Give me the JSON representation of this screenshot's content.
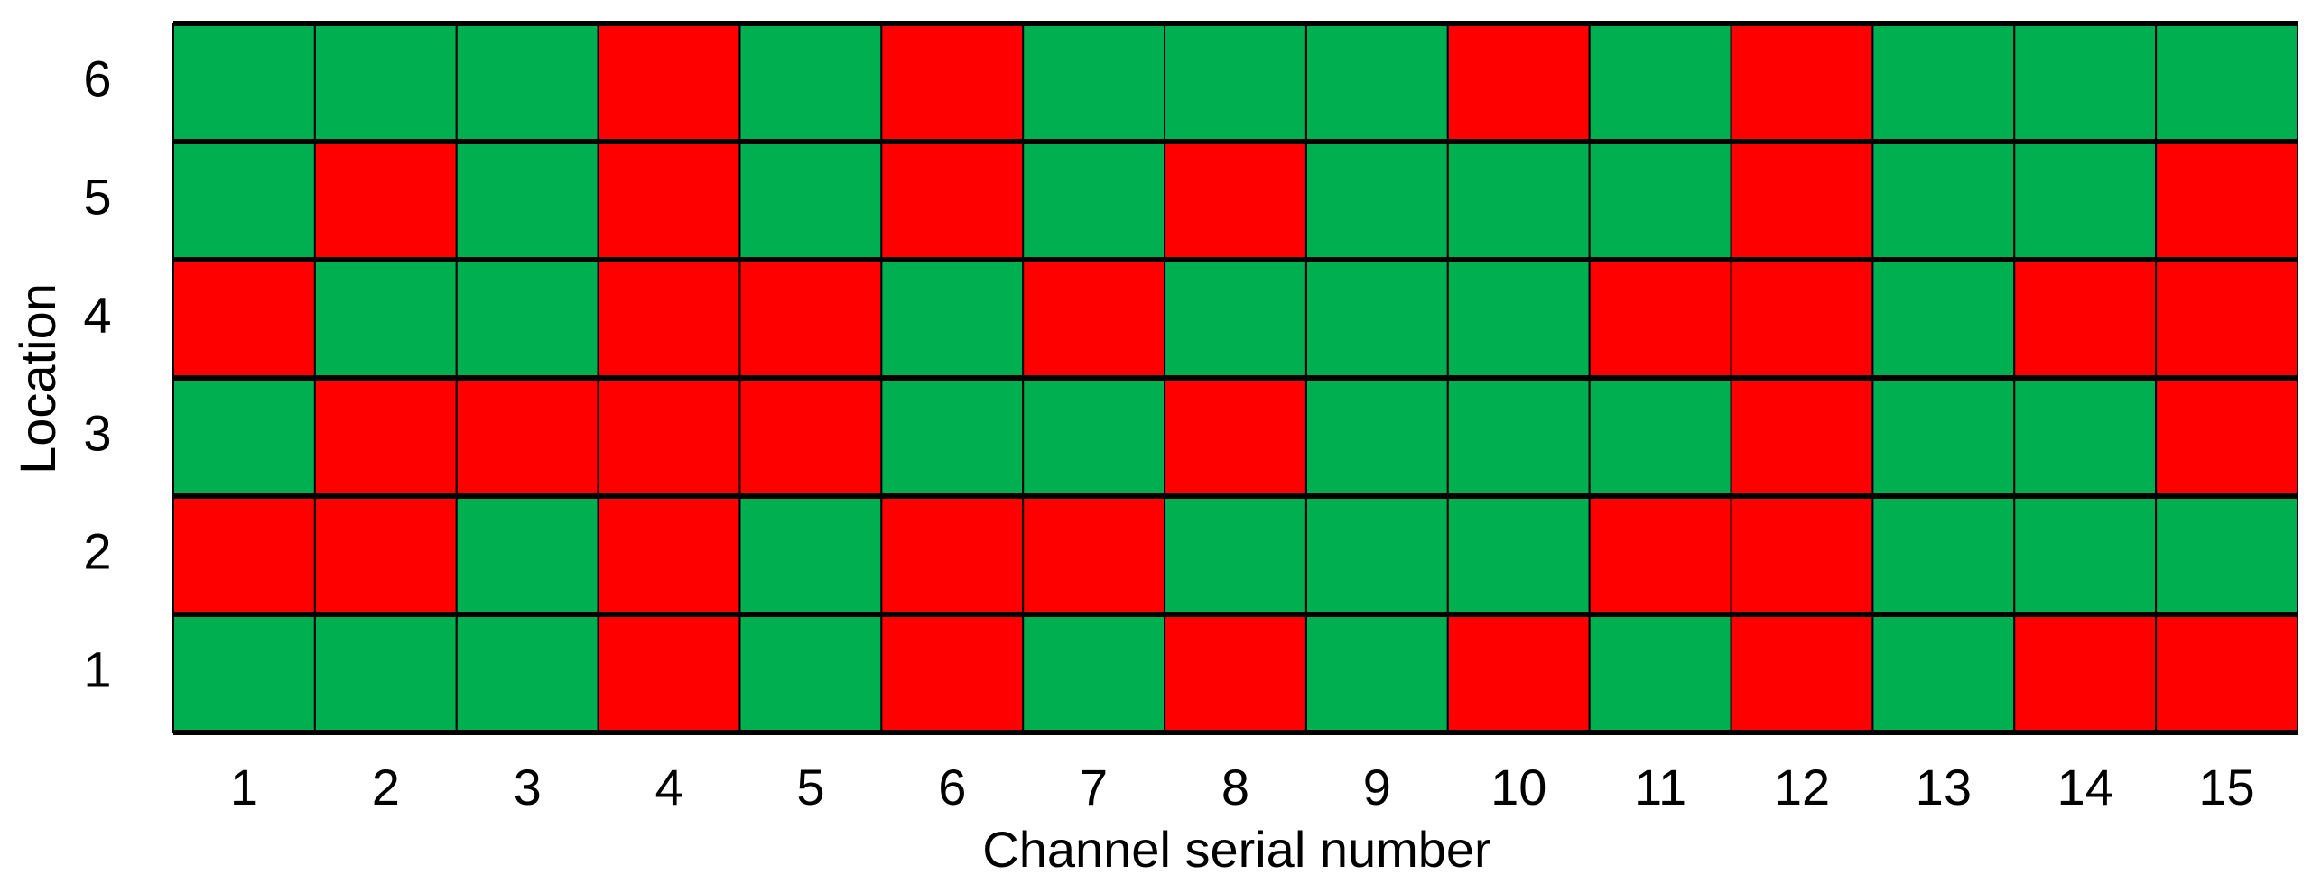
{
  "chart_data": {
    "type": "heatmap",
    "xlabel": "Channel serial number",
    "ylabel": "Location",
    "xticks": [
      1,
      2,
      3,
      4,
      5,
      6,
      7,
      8,
      9,
      10,
      11,
      12,
      13,
      14,
      15
    ],
    "yticks": [
      1,
      2,
      3,
      4,
      5,
      6
    ],
    "cells": [
      [
        "#00b050",
        "#00b050",
        "#00b050",
        "#ff0000",
        "#00b050",
        "#ff0000",
        "#00b050",
        "#ff0000",
        "#00b050",
        "#ff0000",
        "#00b050",
        "#ff0000",
        "#00b050",
        "#ff0000",
        "#ff0000"
      ],
      [
        "#ff0000",
        "#ff0000",
        "#00b050",
        "#ff0000",
        "#00b050",
        "#ff0000",
        "#ff0000",
        "#00b050",
        "#00b050",
        "#00b050",
        "#ff0000",
        "#ff0000",
        "#00b050",
        "#00b050",
        "#00b050"
      ],
      [
        "#00b050",
        "#ff0000",
        "#ff0000",
        "#ff0000",
        "#ff0000",
        "#00b050",
        "#00b050",
        "#ff0000",
        "#00b050",
        "#00b050",
        "#00b050",
        "#ff0000",
        "#00b050",
        "#00b050",
        "#ff0000"
      ],
      [
        "#ff0000",
        "#00b050",
        "#00b050",
        "#ff0000",
        "#ff0000",
        "#00b050",
        "#ff0000",
        "#00b050",
        "#00b050",
        "#00b050",
        "#ff0000",
        "#ff0000",
        "#00b050",
        "#ff0000",
        "#ff0000"
      ],
      [
        "#00b050",
        "#ff0000",
        "#00b050",
        "#ff0000",
        "#00b050",
        "#ff0000",
        "#00b050",
        "#ff0000",
        "#00b050",
        "#00b050",
        "#00b050",
        "#ff0000",
        "#00b050",
        "#00b050",
        "#ff0000"
      ],
      [
        "#00b050",
        "#00b050",
        "#00b050",
        "#ff0000",
        "#00b050",
        "#ff0000",
        "#00b050",
        "#00b050",
        "#00b050",
        "#ff0000",
        "#00b050",
        "#ff0000",
        "#00b050",
        "#00b050",
        "#00b050"
      ]
    ]
  }
}
